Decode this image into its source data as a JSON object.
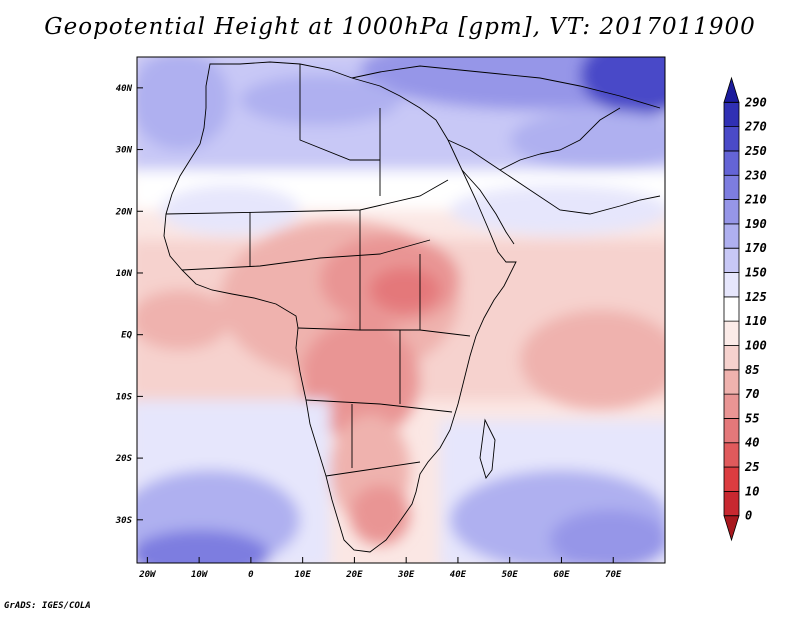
{
  "title": "Geopotential Height at 1000hPa [gpm], VT: 2017011900",
  "credit": "GrADS: IGES/COLA",
  "map": {
    "variable": "Geopotential Height",
    "level": "1000hPa",
    "units": "gpm",
    "valid_time": "2017011900",
    "lon_range": [
      -22,
      80
    ],
    "lat_range": [
      -37,
      45
    ],
    "lon_ticks": [
      {
        "value": -20,
        "label": "20W"
      },
      {
        "value": -10,
        "label": "10W"
      },
      {
        "value": 0,
        "label": "0"
      },
      {
        "value": 10,
        "label": "10E"
      },
      {
        "value": 20,
        "label": "20E"
      },
      {
        "value": 30,
        "label": "30E"
      },
      {
        "value": 40,
        "label": "40E"
      },
      {
        "value": 50,
        "label": "50E"
      },
      {
        "value": 60,
        "label": "60E"
      },
      {
        "value": 70,
        "label": "70E"
      }
    ],
    "lat_ticks": [
      {
        "value": 40,
        "label": "40N"
      },
      {
        "value": 30,
        "label": "30N"
      },
      {
        "value": 20,
        "label": "20N"
      },
      {
        "value": 10,
        "label": "10N"
      },
      {
        "value": 0,
        "label": "EQ"
      },
      {
        "value": -10,
        "label": "10S"
      },
      {
        "value": -20,
        "label": "20S"
      },
      {
        "value": -30,
        "label": "30S"
      }
    ],
    "colorbar": {
      "levels": [
        0,
        10,
        25,
        40,
        55,
        70,
        85,
        100,
        110,
        125,
        150,
        170,
        190,
        210,
        230,
        250,
        270,
        290
      ],
      "colors": [
        "#a8181e",
        "#c82830",
        "#dc3c40",
        "#e05a5c",
        "#e4787a",
        "#e99594",
        "#efb2ae",
        "#f6d2ce",
        "#fbebe8",
        "#ffffff",
        "#e6e6fc",
        "#c8c8f6",
        "#afb0f0",
        "#9696e8",
        "#7d7de0",
        "#6464d6",
        "#4a4ac8",
        "#3030b4",
        "#1c1c9c"
      ],
      "level_labels": [
        "0",
        "10",
        "25",
        "40",
        "55",
        "70",
        "85",
        "100",
        "110",
        "125",
        "150",
        "170",
        "190",
        "210",
        "230",
        "250",
        "270",
        "290"
      ]
    }
  }
}
